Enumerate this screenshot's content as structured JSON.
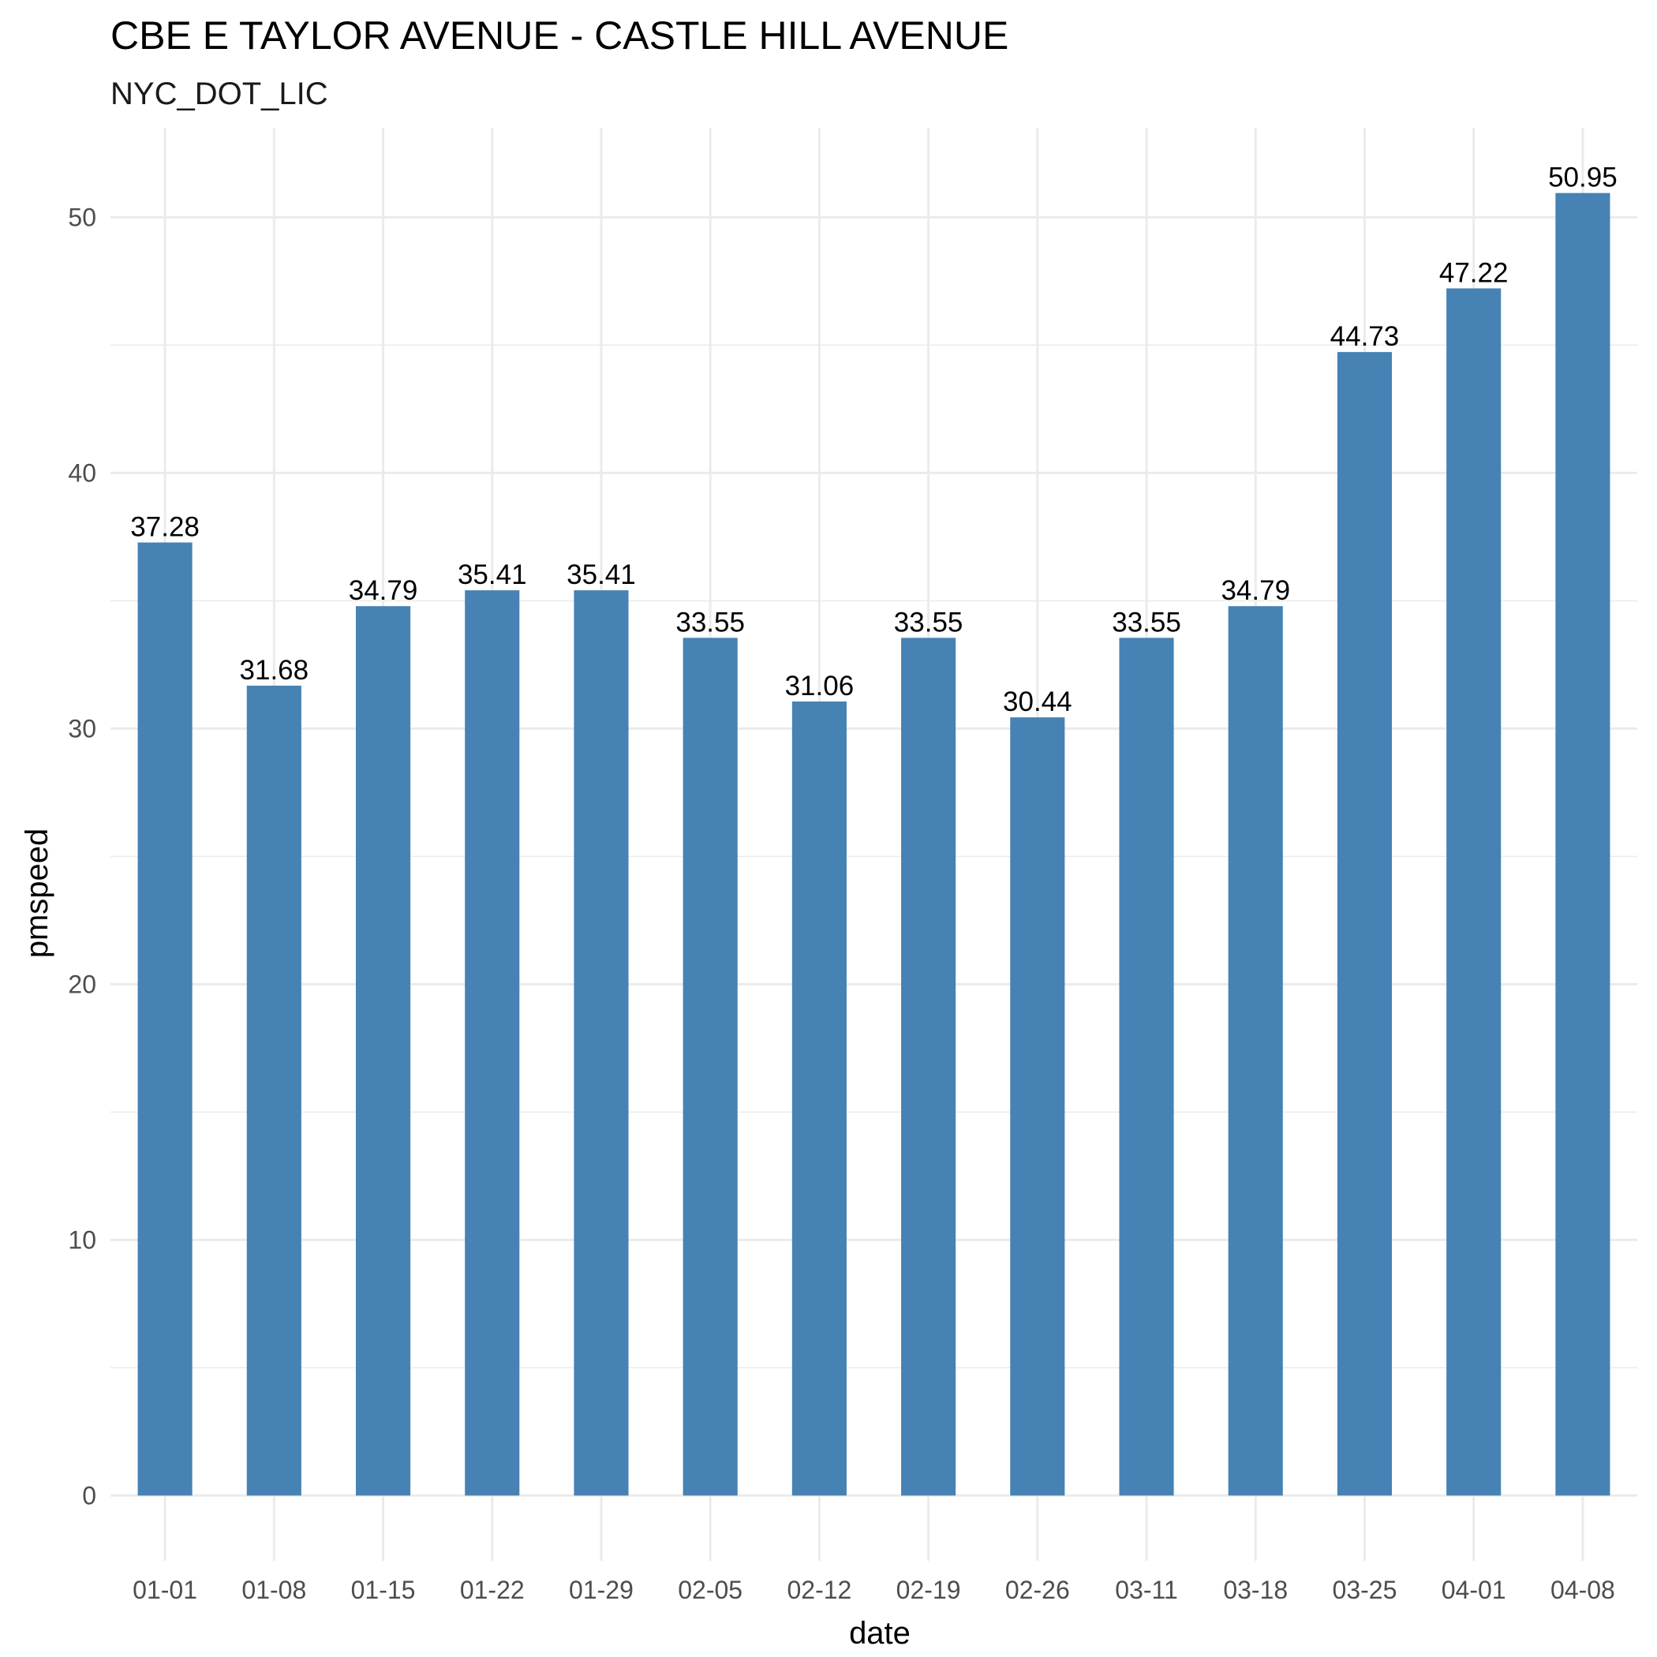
{
  "chart_data": {
    "type": "bar",
    "title": "CBE E TAYLOR AVENUE - CASTLE HILL AVENUE",
    "subtitle": "NYC_DOT_LIC",
    "xlabel": "date",
    "ylabel": "pmspeed",
    "categories": [
      "01-01",
      "01-08",
      "01-15",
      "01-22",
      "01-29",
      "02-05",
      "02-12",
      "02-19",
      "02-26",
      "03-11",
      "03-18",
      "03-25",
      "04-01",
      "04-08"
    ],
    "values": [
      37.28,
      31.68,
      34.79,
      35.41,
      35.41,
      33.55,
      31.06,
      33.55,
      30.44,
      33.55,
      34.79,
      44.73,
      47.22,
      50.95
    ],
    "value_labels": [
      "37.28",
      "31.68",
      "34.79",
      "35.41",
      "35.41",
      "33.55",
      "31.06",
      "33.55",
      "30.44",
      "33.55",
      "34.79",
      "44.73",
      "47.22",
      "50.95"
    ],
    "yticks": [
      0,
      10,
      20,
      30,
      40,
      50
    ],
    "ytick_labels": [
      "0",
      "10",
      "20",
      "30",
      "40",
      "50"
    ],
    "ylim": [
      -2.55,
      53.5
    ],
    "grid": true,
    "legend": "none",
    "bar_color": "#4682B4"
  }
}
